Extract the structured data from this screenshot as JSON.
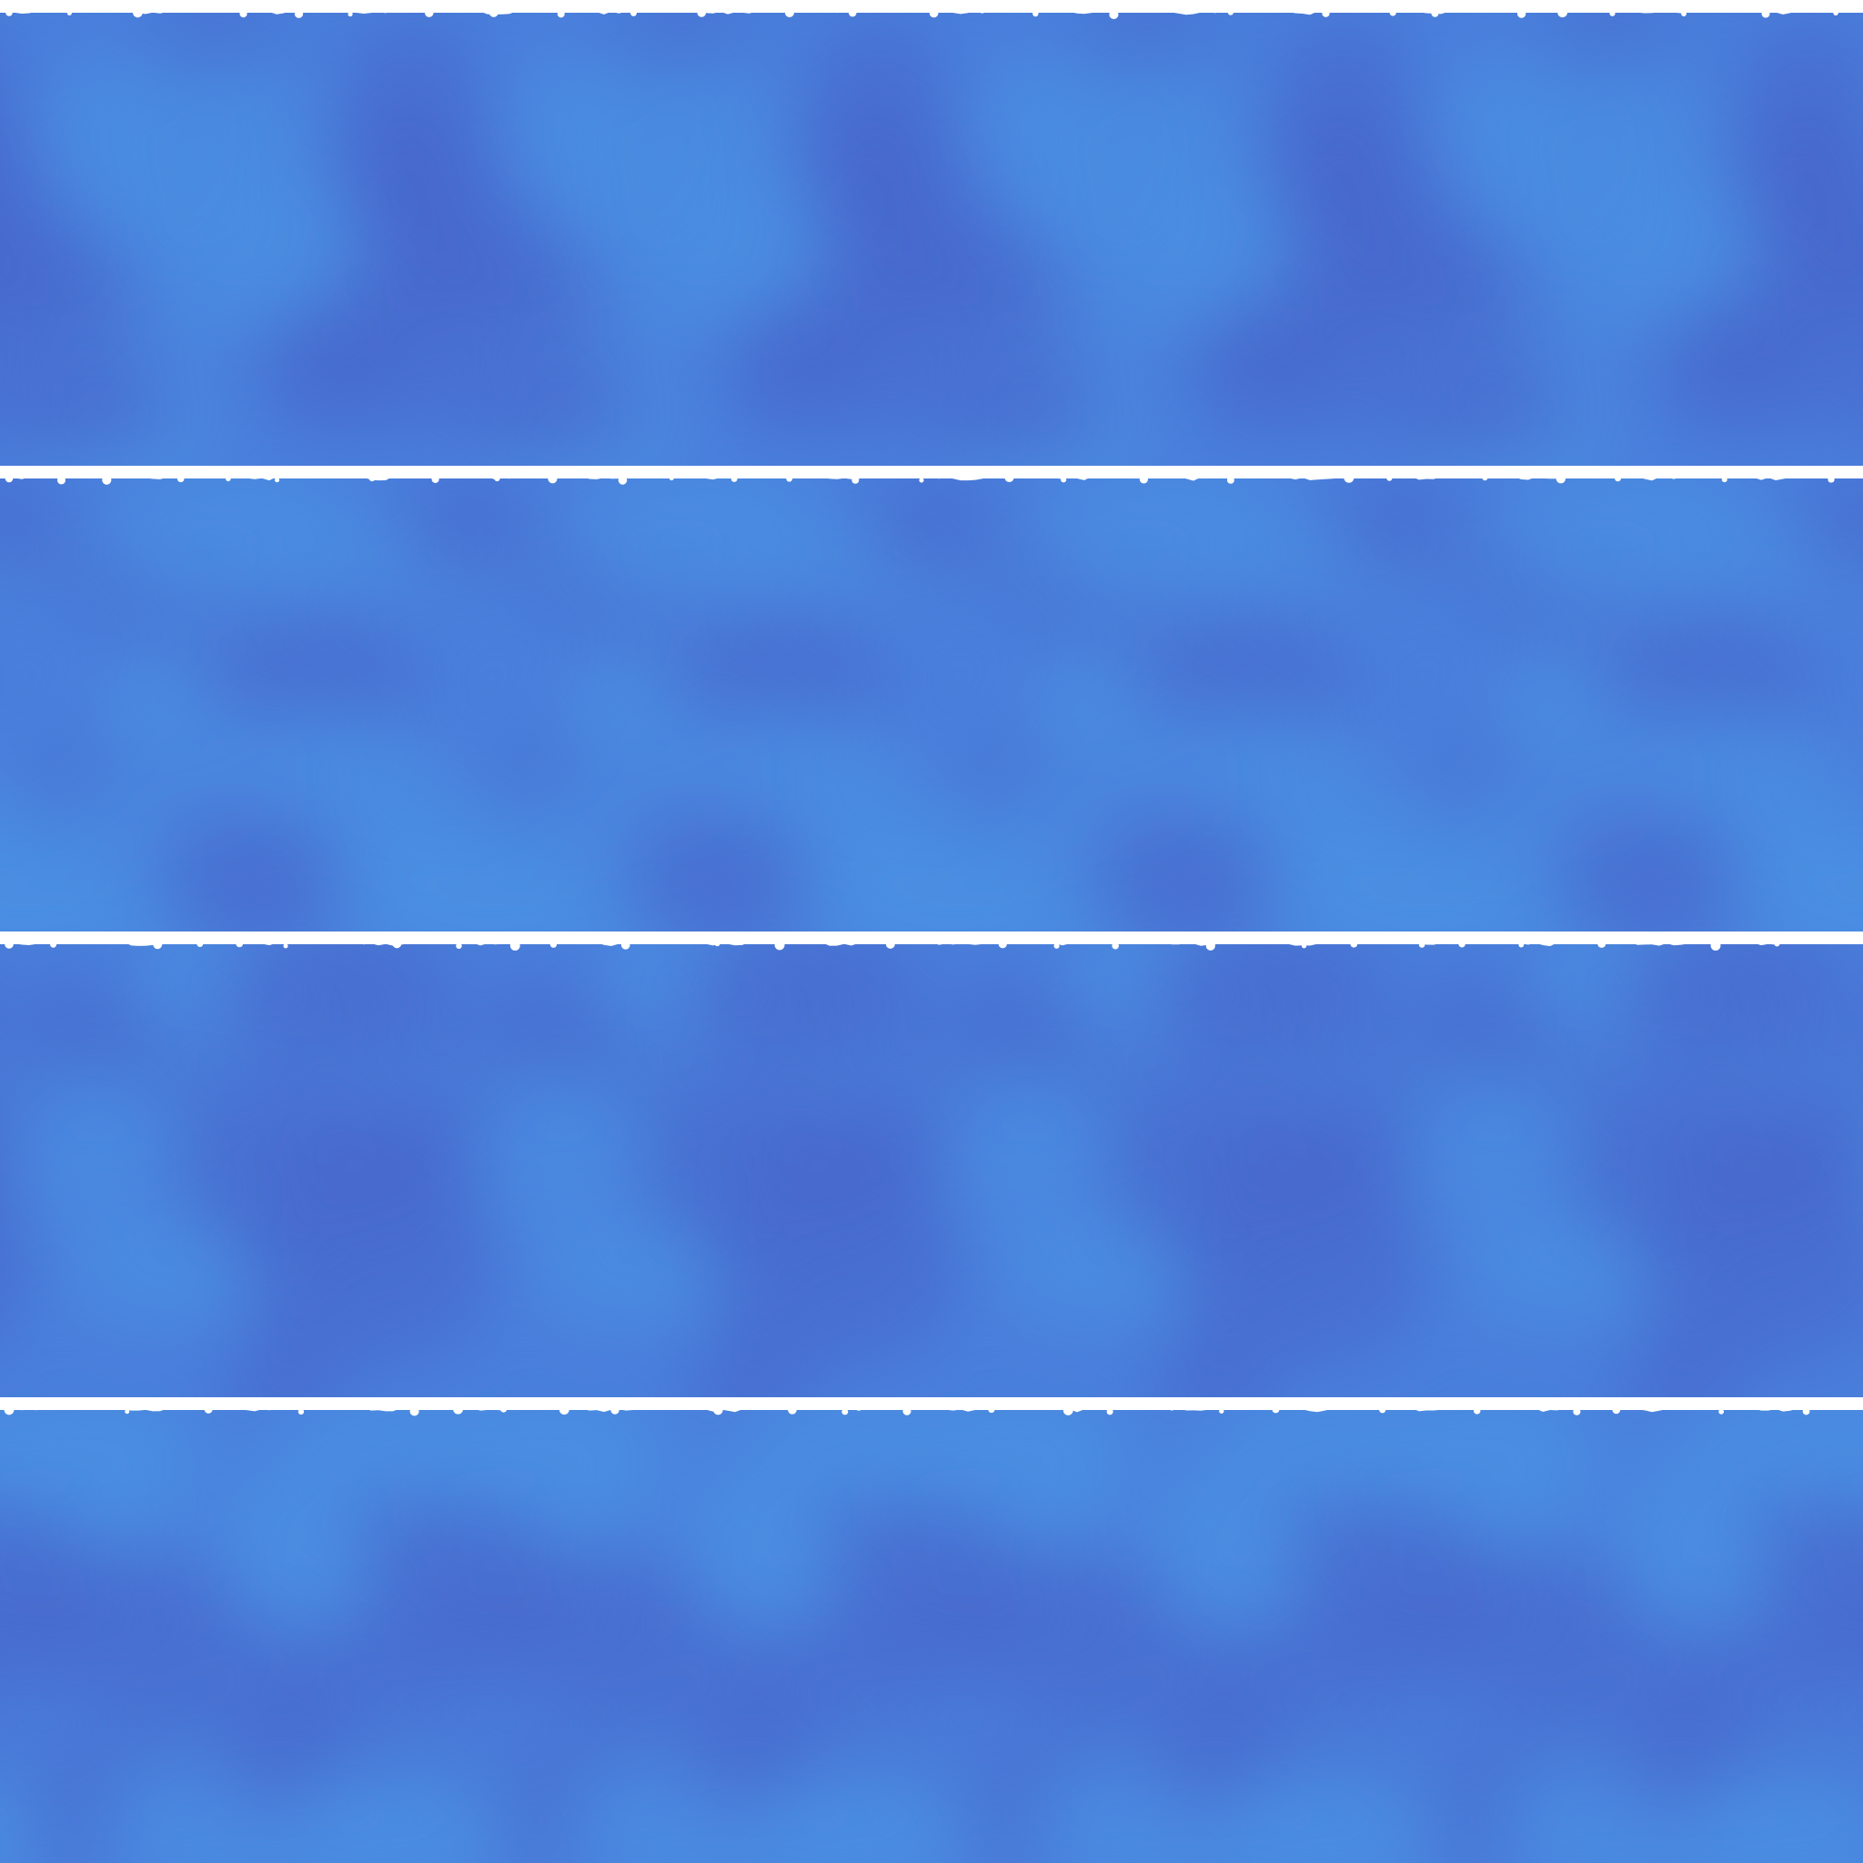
{
  "sheet": {
    "rows": 4,
    "tiles_per_row": 4
  },
  "colors": {
    "water_light": "#4a8fe3",
    "water_mid": "#4a7fdc",
    "water_dark": "#4868cc",
    "foam": "#ffffff",
    "background": "#ffffff"
  },
  "bands": [
    {
      "name": "water-band-1",
      "phase": 0.0
    },
    {
      "name": "water-band-2",
      "phase": 0.25
    },
    {
      "name": "water-band-3",
      "phase": 0.5
    },
    {
      "name": "water-band-4",
      "phase": 0.75
    }
  ]
}
